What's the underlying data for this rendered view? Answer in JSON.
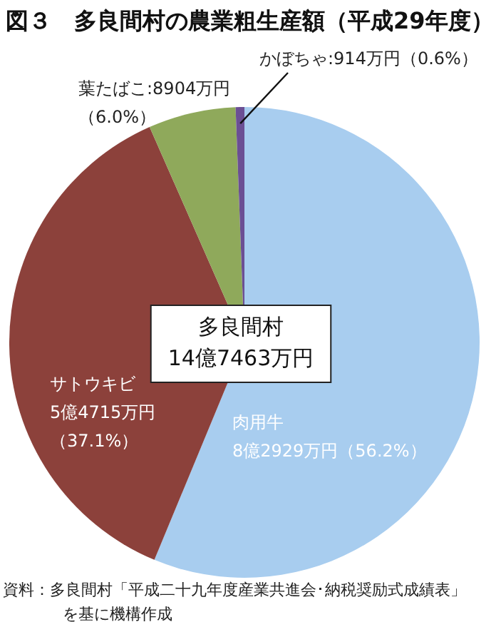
{
  "chart_data": {
    "type": "pie",
    "title": "図３　多良間村の農業粗生産額（平成29年度）",
    "categories": [
      "肉用牛",
      "サトウキビ",
      "葉たばこ",
      "かぼちゃ"
    ],
    "values": [
      56.2,
      37.1,
      6.0,
      0.6
    ],
    "colors": [
      "#a8cdef",
      "#8c413b",
      "#8fa95b",
      "#6b4f94"
    ],
    "value_labels": [
      "8億2929万円（56.2%）",
      "5億4715万円（37.1%）",
      "8904万円（6.0%）",
      "914万円（0.6%）"
    ],
    "annotations": [
      "多良間村\n14億7463万円",
      "資料：多良間村「平成二十九年度産業共進会･納税奨励式成績表」",
      "を基に機構作成"
    ],
    "legend": false
  }
}
